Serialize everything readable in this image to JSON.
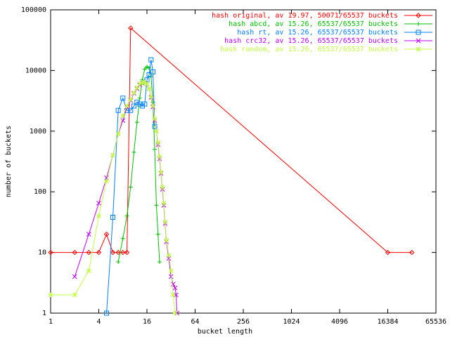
{
  "chart_data": {
    "type": "line",
    "log_x": 2,
    "log_y": 10,
    "x_label": "bucket length",
    "y_label": "number of buckets",
    "xlim": [
      1,
      65536
    ],
    "xticks": [
      1,
      4,
      16,
      64,
      256,
      1024,
      4096,
      16384,
      65536
    ],
    "ylim": [
      1,
      100000
    ],
    "yticks": [
      1,
      10,
      100,
      1000,
      10000,
      100000
    ],
    "legend": "top-right",
    "series": [
      {
        "name": "hash original, av 19.97, 50071/65537 buckets",
        "color": "#ff0000",
        "marker": "diamond",
        "x": [
          1,
          2,
          3,
          4,
          5,
          6,
          7,
          8,
          9,
          10,
          16384,
          32768
        ],
        "values": [
          10,
          10,
          10,
          10,
          20,
          10,
          10,
          10,
          10,
          50071,
          10,
          10
        ]
      },
      {
        "name": "hash abcd, av 15.26, 65537/65537 buckets",
        "color": "#00c000",
        "marker": "plus",
        "x": [
          7,
          8,
          9,
          10,
          11,
          12,
          13,
          14,
          15,
          16,
          17,
          18,
          19,
          20,
          21,
          22,
          23
        ],
        "values": [
          7,
          17,
          40,
          120,
          450,
          1400,
          3500,
          7000,
          10500,
          11500,
          11000,
          8000,
          3000,
          500,
          60,
          20,
          7
        ]
      },
      {
        "name": "hash rt, av 15.26, 65537/65537 buckets",
        "color": "#0080ff",
        "marker": "square",
        "x": [
          5,
          6,
          7,
          8,
          9,
          10,
          11,
          12,
          13,
          14,
          15,
          16,
          17,
          18,
          19,
          20
        ],
        "values": [
          1,
          38,
          2200,
          3500,
          2200,
          2200,
          2600,
          3000,
          2800,
          2600,
          2800,
          7000,
          8500,
          15000,
          9500,
          1200
        ]
      },
      {
        "name": "hash crc32, av 15.26, 65537/65537 buckets",
        "color": "#c000ff",
        "marker": "cross",
        "x": [
          2,
          3,
          4,
          5,
          6,
          7,
          8,
          9,
          10,
          11,
          12,
          13,
          14,
          15,
          16,
          17,
          18,
          19,
          20,
          21,
          22,
          23,
          24,
          25,
          26,
          27,
          28,
          30,
          32,
          34,
          36,
          37,
          38
        ],
        "values": [
          4,
          20,
          65,
          170,
          400,
          900,
          1500,
          2500,
          3200,
          4200,
          5000,
          5800,
          6200,
          6300,
          6000,
          5000,
          3600,
          2500,
          1500,
          1000,
          600,
          350,
          200,
          110,
          60,
          30,
          15,
          8,
          4,
          3,
          2.6,
          2,
          1
        ]
      },
      {
        "name": "hash random, av 15.26, 65537/65537 buckets",
        "color": "#c0ff40",
        "marker": "star",
        "x": [
          1,
          2,
          3,
          4,
          5,
          6,
          7,
          8,
          9,
          10,
          11,
          12,
          13,
          14,
          15,
          16,
          17,
          18,
          19,
          20,
          21,
          22,
          23,
          24,
          25,
          26,
          27,
          28,
          30,
          32,
          34,
          36
        ],
        "values": [
          2,
          2,
          5,
          40,
          150,
          400,
          900,
          1800,
          2600,
          3300,
          4300,
          5200,
          6000,
          6300,
          6400,
          6000,
          5000,
          3700,
          2600,
          1600,
          1000,
          650,
          380,
          210,
          120,
          65,
          32,
          16,
          9,
          5,
          2,
          1
        ]
      }
    ]
  }
}
